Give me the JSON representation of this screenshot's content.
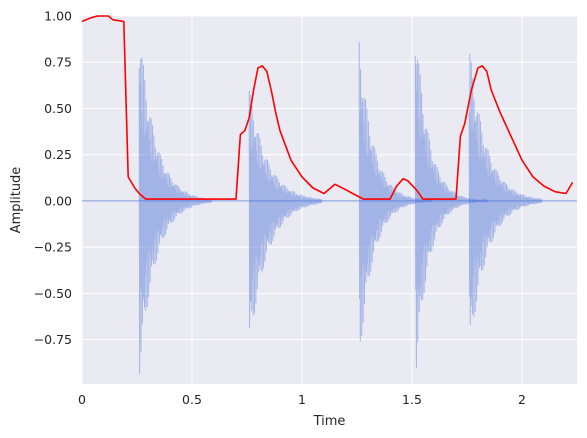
{
  "chart_data": {
    "type": "line",
    "title": "",
    "xlabel": "Time",
    "ylabel": "Amplitude",
    "xlim": [
      0,
      2.25
    ],
    "ylim": [
      -0.99,
      1.0
    ],
    "x_ticks": [
      {
        "value": 0,
        "label": "0"
      },
      {
        "value": 0.5,
        "label": "0.5"
      },
      {
        "value": 1,
        "label": "1"
      },
      {
        "value": 1.5,
        "label": "1.5"
      },
      {
        "value": 2,
        "label": "2"
      }
    ],
    "y_ticks": [
      {
        "value": 1.0,
        "label": "1.00"
      },
      {
        "value": 0.75,
        "label": "0.75"
      },
      {
        "value": 0.5,
        "label": "0.50"
      },
      {
        "value": 0.25,
        "label": "0.25"
      },
      {
        "value": 0.0,
        "label": "0.00"
      },
      {
        "value": -0.25,
        "label": "−0.25"
      },
      {
        "value": -0.5,
        "label": "−0.50"
      },
      {
        "value": -0.75,
        "label": "−0.75"
      }
    ],
    "grid": true,
    "colors": {
      "background": "#eaeaf2",
      "grid": "#ffffff",
      "waveform": "#4c72d8",
      "envelope": "#ff0000"
    },
    "series": [
      {
        "role": "waveform",
        "color": "#4c72d8",
        "bursts": [
          {
            "onset": 0.26,
            "amp_pos": 0.96,
            "amp_neg": -0.96,
            "decay": 0.16
          },
          {
            "onset": 0.76,
            "amp_pos": 0.62,
            "amp_neg": -0.82,
            "decay": 0.18
          },
          {
            "onset": 1.26,
            "amp_pos": 0.88,
            "amp_neg": -0.88,
            "decay": 0.14
          },
          {
            "onset": 1.515,
            "amp_pos": 1.0,
            "amp_neg": -0.99,
            "decay": 0.13
          },
          {
            "onset": 1.76,
            "amp_pos": 0.85,
            "amp_neg": -0.86,
            "decay": 0.17
          }
        ]
      },
      {
        "role": "envelope",
        "color": "#ff0000",
        "x": [
          0,
          0.04,
          0.07,
          0.12,
          0.14,
          0.19,
          0.21,
          0.24,
          0.26,
          0.29,
          0.32,
          0.35,
          0.38,
          0.42,
          0.5,
          0.6,
          0.7,
          0.72,
          0.74,
          0.76,
          0.78,
          0.8,
          0.82,
          0.84,
          0.86,
          0.88,
          0.9,
          0.95,
          1.0,
          1.05,
          1.1,
          1.15,
          1.2,
          1.23,
          1.28,
          1.3,
          1.32,
          1.35,
          1.4,
          1.43,
          1.46,
          1.48,
          1.52,
          1.55,
          1.57,
          1.6,
          1.65,
          1.7,
          1.72,
          1.74,
          1.77,
          1.8,
          1.82,
          1.84,
          1.86,
          1.9,
          1.95,
          2.0,
          2.05,
          2.1,
          2.15,
          2.2,
          2.23
        ],
        "y": [
          0.97,
          0.99,
          1.0,
          1.0,
          0.98,
          0.97,
          0.13,
          0.07,
          0.04,
          0.01,
          0.01,
          0.01,
          0.01,
          0.01,
          0.01,
          0.01,
          0.01,
          0.36,
          0.38,
          0.45,
          0.6,
          0.72,
          0.73,
          0.7,
          0.6,
          0.48,
          0.38,
          0.22,
          0.13,
          0.07,
          0.04,
          0.09,
          0.06,
          0.04,
          0.01,
          0.01,
          0.01,
          0.01,
          0.01,
          0.08,
          0.12,
          0.11,
          0.06,
          0.01,
          0.01,
          0.01,
          0.01,
          0.01,
          0.35,
          0.42,
          0.6,
          0.72,
          0.73,
          0.7,
          0.6,
          0.48,
          0.35,
          0.22,
          0.13,
          0.08,
          0.05,
          0.04,
          0.1
        ]
      }
    ]
  }
}
